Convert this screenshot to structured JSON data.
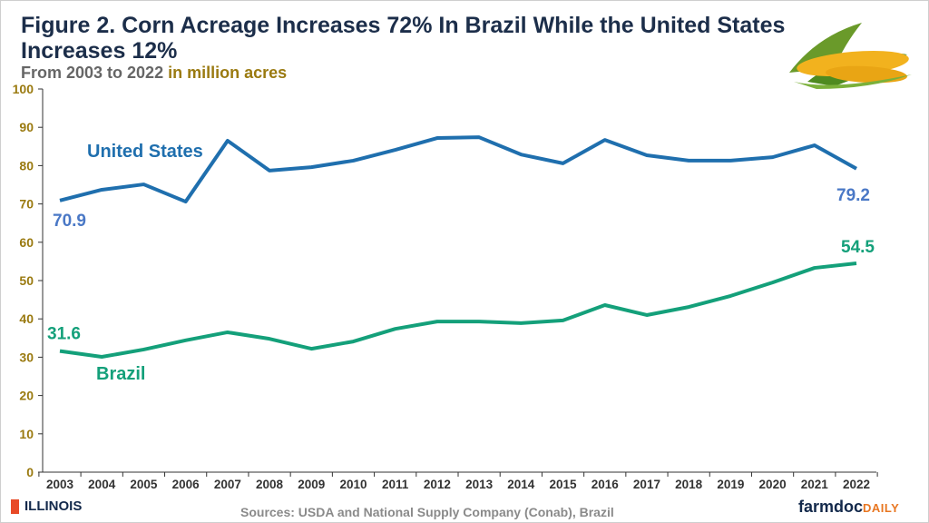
{
  "chart_data": {
    "type": "line",
    "title": "Figure 2. Corn Acreage Increases 72% In Brazil While the United States Increases 12%",
    "subtitle": "From 2003 to 2022",
    "unit_label": "in million acres",
    "x": [
      2003,
      2004,
      2005,
      2006,
      2007,
      2008,
      2009,
      2010,
      2011,
      2012,
      2013,
      2014,
      2015,
      2016,
      2017,
      2018,
      2019,
      2020,
      2021,
      2022
    ],
    "ylim": [
      0,
      100
    ],
    "yticks": [
      0,
      10,
      20,
      30,
      40,
      50,
      60,
      70,
      80,
      90,
      100
    ],
    "grid": false,
    "series": [
      {
        "name": "United States",
        "color": "#1f6fae",
        "label_color": "#4a78c6",
        "values": [
          70.9,
          73.7,
          75.1,
          70.6,
          86.5,
          78.7,
          79.6,
          81.3,
          84.1,
          87.2,
          87.4,
          82.9,
          80.6,
          86.7,
          82.7,
          81.3,
          81.3,
          82.2,
          85.3,
          79.2
        ],
        "start_label": "70.9",
        "end_label": "79.2"
      },
      {
        "name": "Brazil",
        "color": "#14a07a",
        "label_color": "#14a07a",
        "values": [
          31.6,
          30.1,
          32.0,
          34.4,
          36.5,
          34.8,
          32.2,
          34.1,
          37.4,
          39.3,
          39.3,
          38.9,
          39.6,
          43.6,
          41.0,
          43.1,
          46.0,
          49.5,
          53.3,
          54.5
        ],
        "start_label": "31.6",
        "end_label": "54.5"
      }
    ]
  },
  "footer": {
    "source": "Sources: USDA and National Supply Company (Conab), Brazil",
    "left_logo": "ILLINOIS",
    "right_logo_a": "farmdoc",
    "right_logo_b": "DAILY"
  },
  "colors": {
    "axis_label": "#9a7a10",
    "title": "#1c2e4a"
  }
}
